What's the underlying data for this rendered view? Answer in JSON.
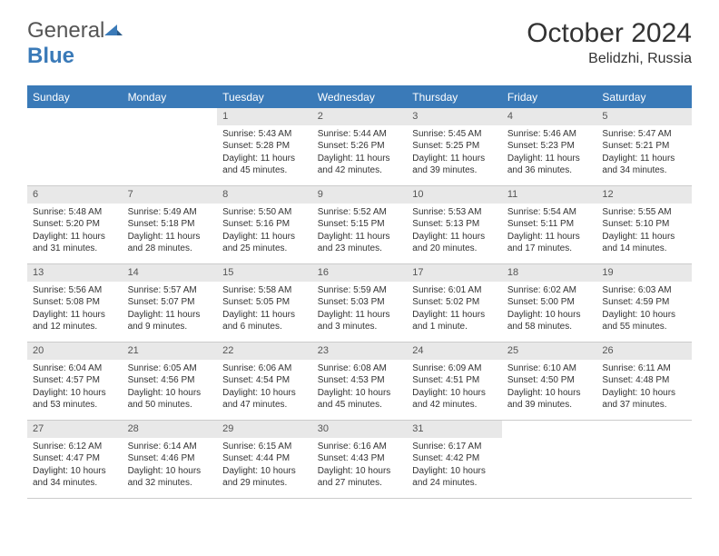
{
  "logo": {
    "text1": "General",
    "text2": "Blue"
  },
  "header": {
    "month_title": "October 2024",
    "location": "Belidzhi, Russia"
  },
  "day_headers": [
    "Sunday",
    "Monday",
    "Tuesday",
    "Wednesday",
    "Thursday",
    "Friday",
    "Saturday"
  ],
  "colors": {
    "header_bg": "#3a7ab8",
    "header_text": "#ffffff",
    "day_bar_bg": "#e8e8e8",
    "text": "#333333"
  },
  "cells": [
    {
      "empty": true
    },
    {
      "empty": true
    },
    {
      "day": "1",
      "sunrise": "Sunrise: 5:43 AM",
      "sunset": "Sunset: 5:28 PM",
      "daylight": "Daylight: 11 hours and 45 minutes."
    },
    {
      "day": "2",
      "sunrise": "Sunrise: 5:44 AM",
      "sunset": "Sunset: 5:26 PM",
      "daylight": "Daylight: 11 hours and 42 minutes."
    },
    {
      "day": "3",
      "sunrise": "Sunrise: 5:45 AM",
      "sunset": "Sunset: 5:25 PM",
      "daylight": "Daylight: 11 hours and 39 minutes."
    },
    {
      "day": "4",
      "sunrise": "Sunrise: 5:46 AM",
      "sunset": "Sunset: 5:23 PM",
      "daylight": "Daylight: 11 hours and 36 minutes."
    },
    {
      "day": "5",
      "sunrise": "Sunrise: 5:47 AM",
      "sunset": "Sunset: 5:21 PM",
      "daylight": "Daylight: 11 hours and 34 minutes."
    },
    {
      "day": "6",
      "sunrise": "Sunrise: 5:48 AM",
      "sunset": "Sunset: 5:20 PM",
      "daylight": "Daylight: 11 hours and 31 minutes."
    },
    {
      "day": "7",
      "sunrise": "Sunrise: 5:49 AM",
      "sunset": "Sunset: 5:18 PM",
      "daylight": "Daylight: 11 hours and 28 minutes."
    },
    {
      "day": "8",
      "sunrise": "Sunrise: 5:50 AM",
      "sunset": "Sunset: 5:16 PM",
      "daylight": "Daylight: 11 hours and 25 minutes."
    },
    {
      "day": "9",
      "sunrise": "Sunrise: 5:52 AM",
      "sunset": "Sunset: 5:15 PM",
      "daylight": "Daylight: 11 hours and 23 minutes."
    },
    {
      "day": "10",
      "sunrise": "Sunrise: 5:53 AM",
      "sunset": "Sunset: 5:13 PM",
      "daylight": "Daylight: 11 hours and 20 minutes."
    },
    {
      "day": "11",
      "sunrise": "Sunrise: 5:54 AM",
      "sunset": "Sunset: 5:11 PM",
      "daylight": "Daylight: 11 hours and 17 minutes."
    },
    {
      "day": "12",
      "sunrise": "Sunrise: 5:55 AM",
      "sunset": "Sunset: 5:10 PM",
      "daylight": "Daylight: 11 hours and 14 minutes."
    },
    {
      "day": "13",
      "sunrise": "Sunrise: 5:56 AM",
      "sunset": "Sunset: 5:08 PM",
      "daylight": "Daylight: 11 hours and 12 minutes."
    },
    {
      "day": "14",
      "sunrise": "Sunrise: 5:57 AM",
      "sunset": "Sunset: 5:07 PM",
      "daylight": "Daylight: 11 hours and 9 minutes."
    },
    {
      "day": "15",
      "sunrise": "Sunrise: 5:58 AM",
      "sunset": "Sunset: 5:05 PM",
      "daylight": "Daylight: 11 hours and 6 minutes."
    },
    {
      "day": "16",
      "sunrise": "Sunrise: 5:59 AM",
      "sunset": "Sunset: 5:03 PM",
      "daylight": "Daylight: 11 hours and 3 minutes."
    },
    {
      "day": "17",
      "sunrise": "Sunrise: 6:01 AM",
      "sunset": "Sunset: 5:02 PM",
      "daylight": "Daylight: 11 hours and 1 minute."
    },
    {
      "day": "18",
      "sunrise": "Sunrise: 6:02 AM",
      "sunset": "Sunset: 5:00 PM",
      "daylight": "Daylight: 10 hours and 58 minutes."
    },
    {
      "day": "19",
      "sunrise": "Sunrise: 6:03 AM",
      "sunset": "Sunset: 4:59 PM",
      "daylight": "Daylight: 10 hours and 55 minutes."
    },
    {
      "day": "20",
      "sunrise": "Sunrise: 6:04 AM",
      "sunset": "Sunset: 4:57 PM",
      "daylight": "Daylight: 10 hours and 53 minutes."
    },
    {
      "day": "21",
      "sunrise": "Sunrise: 6:05 AM",
      "sunset": "Sunset: 4:56 PM",
      "daylight": "Daylight: 10 hours and 50 minutes."
    },
    {
      "day": "22",
      "sunrise": "Sunrise: 6:06 AM",
      "sunset": "Sunset: 4:54 PM",
      "daylight": "Daylight: 10 hours and 47 minutes."
    },
    {
      "day": "23",
      "sunrise": "Sunrise: 6:08 AM",
      "sunset": "Sunset: 4:53 PM",
      "daylight": "Daylight: 10 hours and 45 minutes."
    },
    {
      "day": "24",
      "sunrise": "Sunrise: 6:09 AM",
      "sunset": "Sunset: 4:51 PM",
      "daylight": "Daylight: 10 hours and 42 minutes."
    },
    {
      "day": "25",
      "sunrise": "Sunrise: 6:10 AM",
      "sunset": "Sunset: 4:50 PM",
      "daylight": "Daylight: 10 hours and 39 minutes."
    },
    {
      "day": "26",
      "sunrise": "Sunrise: 6:11 AM",
      "sunset": "Sunset: 4:48 PM",
      "daylight": "Daylight: 10 hours and 37 minutes."
    },
    {
      "day": "27",
      "sunrise": "Sunrise: 6:12 AM",
      "sunset": "Sunset: 4:47 PM",
      "daylight": "Daylight: 10 hours and 34 minutes."
    },
    {
      "day": "28",
      "sunrise": "Sunrise: 6:14 AM",
      "sunset": "Sunset: 4:46 PM",
      "daylight": "Daylight: 10 hours and 32 minutes."
    },
    {
      "day": "29",
      "sunrise": "Sunrise: 6:15 AM",
      "sunset": "Sunset: 4:44 PM",
      "daylight": "Daylight: 10 hours and 29 minutes."
    },
    {
      "day": "30",
      "sunrise": "Sunrise: 6:16 AM",
      "sunset": "Sunset: 4:43 PM",
      "daylight": "Daylight: 10 hours and 27 minutes."
    },
    {
      "day": "31",
      "sunrise": "Sunrise: 6:17 AM",
      "sunset": "Sunset: 4:42 PM",
      "daylight": "Daylight: 10 hours and 24 minutes."
    },
    {
      "empty": true
    },
    {
      "empty": true
    }
  ]
}
